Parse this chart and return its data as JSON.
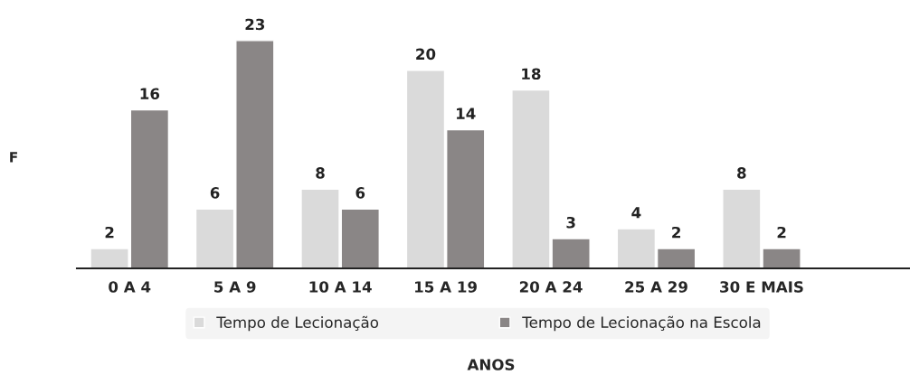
{
  "chart_data": {
    "type": "bar",
    "categories": [
      "0 A 4",
      "5 A 9",
      "10 A 14",
      "15 A 19",
      "20 A 24",
      "25 A 29",
      "30 E MAIS"
    ],
    "series": [
      {
        "name": "Tempo de Lecionação",
        "color": "#dadada",
        "values": [
          2,
          6,
          8,
          20,
          18,
          4,
          8
        ]
      },
      {
        "name": "Tempo de Lecionação na Escola",
        "color": "#8a8686",
        "values": [
          16,
          23,
          6,
          14,
          3,
          2,
          2
        ]
      }
    ],
    "ylabel": "F",
    "xlabel": "ANOS",
    "data_labels": true,
    "legend": "bottom",
    "grid": false,
    "tick_labels": "x"
  }
}
